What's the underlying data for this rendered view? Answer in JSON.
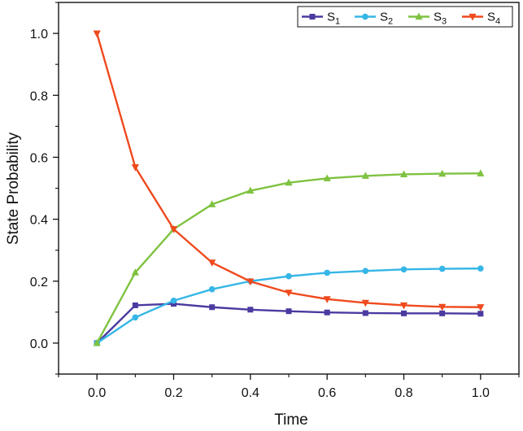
{
  "chart_data": {
    "type": "line",
    "title": "",
    "xlabel": "Time",
    "ylabel": "State Probability",
    "xlim": [
      -0.1,
      1.1
    ],
    "ylim": [
      -0.1,
      1.1
    ],
    "x_ticks": [
      0.0,
      0.2,
      0.4,
      0.6,
      0.8,
      1.0
    ],
    "x_tick_labels": [
      "0.0",
      "0.2",
      "0.4",
      "0.6",
      "0.8",
      "1.0"
    ],
    "y_ticks": [
      0.0,
      0.2,
      0.4,
      0.6,
      0.8,
      1.0
    ],
    "y_tick_labels": [
      "0.0",
      "0.2",
      "0.4",
      "0.6",
      "0.8",
      "1.0"
    ],
    "grid": false,
    "legend_position": "top-right",
    "x": [
      0.0,
      0.1,
      0.2,
      0.3,
      0.4,
      0.5,
      0.6,
      0.7,
      0.8,
      0.9,
      1.0
    ],
    "series": [
      {
        "name": "S1",
        "base": "S",
        "sub": "1",
        "color": "#4b3aa0",
        "marker": "square",
        "values": [
          0.0,
          0.122,
          0.127,
          0.116,
          0.108,
          0.103,
          0.099,
          0.097,
          0.096,
          0.096,
          0.095
        ]
      },
      {
        "name": "S2",
        "base": "S",
        "sub": "2",
        "color": "#35b6e6",
        "marker": "circle",
        "values": [
          0.0,
          0.083,
          0.137,
          0.174,
          0.2,
          0.216,
          0.227,
          0.233,
          0.238,
          0.24,
          0.241
        ]
      },
      {
        "name": "S3",
        "base": "S",
        "sub": "3",
        "color": "#7fc241",
        "marker": "triangle-up",
        "values": [
          0.0,
          0.228,
          0.368,
          0.448,
          0.492,
          0.518,
          0.532,
          0.54,
          0.545,
          0.547,
          0.548
        ]
      },
      {
        "name": "S4",
        "base": "S",
        "sub": "4",
        "color": "#ef4a1e",
        "marker": "triangle-down",
        "values": [
          1.0,
          0.568,
          0.368,
          0.26,
          0.199,
          0.163,
          0.142,
          0.13,
          0.122,
          0.117,
          0.116
        ]
      }
    ]
  }
}
